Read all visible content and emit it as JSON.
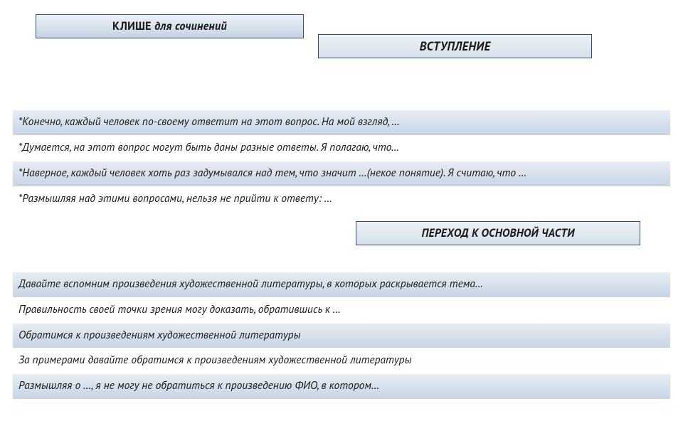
{
  "colors": {
    "box_border": "#2f506f",
    "box_grad_top": "#edf1f6",
    "box_grad_bot": "#c5d3e3",
    "row_shade_top": "#e8edf4",
    "row_shade_bot": "#c7d4e4",
    "text": "#1a1a1a",
    "background": "#ffffff"
  },
  "header": {
    "title_prefix": "КЛИШЕ",
    "title_rest": " для сочинений",
    "subtitle": "ВСТУПЛЕНИЕ"
  },
  "intro_rows": [
    "*Конечно, каждый человек по-своему ответит на этот вопрос. На мой взгляд, …",
    "*Думается, на этот вопрос могут быть даны разные ответы. Я полагаю, что…",
    "*Наверное, каждый человек хоть раз задумывался над тем, что значит …(некое понятие). Я считаю, что …",
    "*Размышляя над этими вопросами, нельзя не прийти к ответу: …"
  ],
  "mid_label": "ПЕРЕХОД К ОСНОВНОЙ ЧАСТИ",
  "body_rows": [
    "Давайте вспомним произведения художественной литературы, в которых раскрывается тема…",
    "Правильность своей точки зрения могу доказать, обратившись к …",
    "Обратимся к произведениям художественной литературы",
    "За примерами давайте обратимся к произведениям художественной литературы",
    "Размышляя о …, я не могу не обратиться к произведению ФИО, в котором…"
  ],
  "typography": {
    "title_fontsize": 16,
    "row_fontsize": 15.5,
    "font_style": "italic"
  }
}
